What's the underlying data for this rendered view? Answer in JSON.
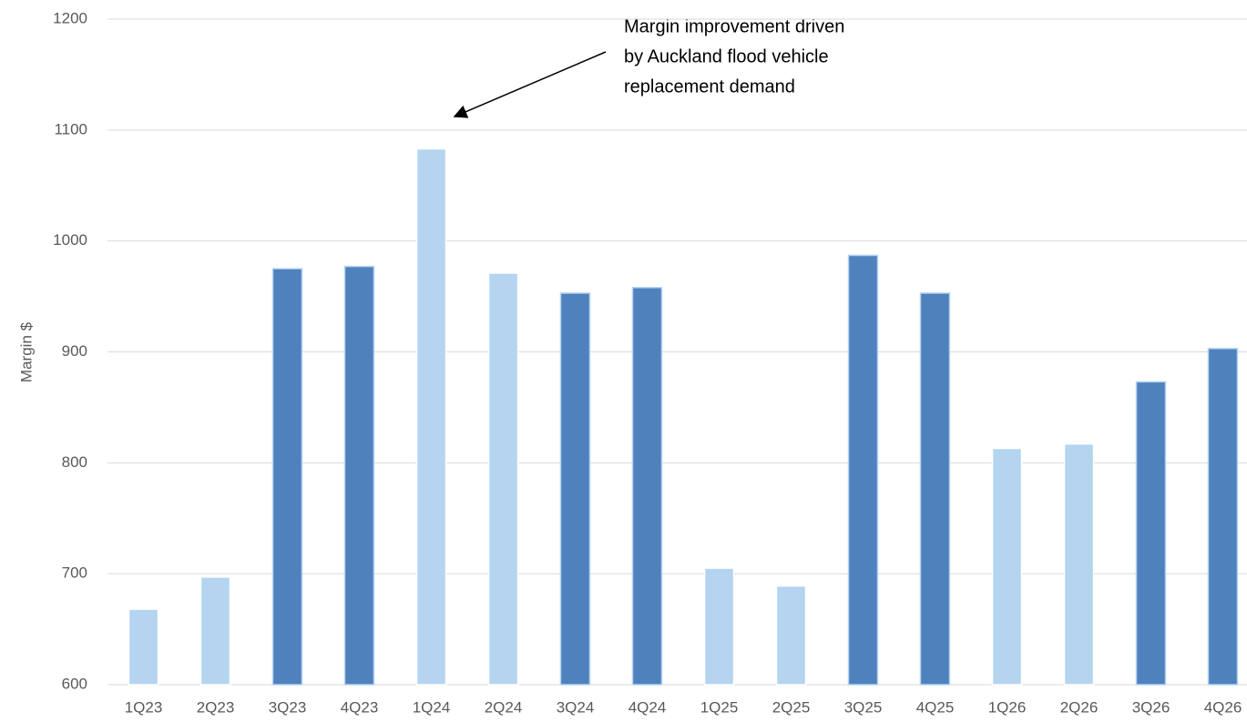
{
  "chart_data": {
    "type": "bar",
    "y_label": "Margin $",
    "annotation": [
      "Margin improvement driven",
      "by  Auckland flood vehicle",
      "replacement demand"
    ],
    "categories": [
      "1Q23",
      "2Q23",
      "3Q23",
      "4Q23",
      "1Q24",
      "2Q24",
      "3Q24",
      "4Q24",
      "1Q25",
      "2Q25",
      "3Q25",
      "4Q25",
      "1Q26",
      "2Q26",
      "3Q26",
      "4Q26"
    ],
    "values": [
      668,
      697,
      975,
      977,
      1083,
      971,
      953,
      958,
      705,
      689,
      987,
      953,
      813,
      817,
      873,
      903
    ],
    "colors": [
      "#b4d4f0",
      "#b4d4f0",
      "#4f81bd",
      "#4f81bd",
      "#b4d4f0",
      "#b4d4f0",
      "#4f81bd",
      "#4f81bd",
      "#b4d4f0",
      "#b4d4f0",
      "#4f81bd",
      "#4f81bd",
      "#b4d4f0",
      "#b4d4f0",
      "#4f81bd",
      "#4f81bd"
    ],
    "ylim": [
      600,
      1200
    ],
    "yticks": [
      600,
      700,
      800,
      900,
      1000,
      1100,
      1200
    ],
    "grid": true
  }
}
